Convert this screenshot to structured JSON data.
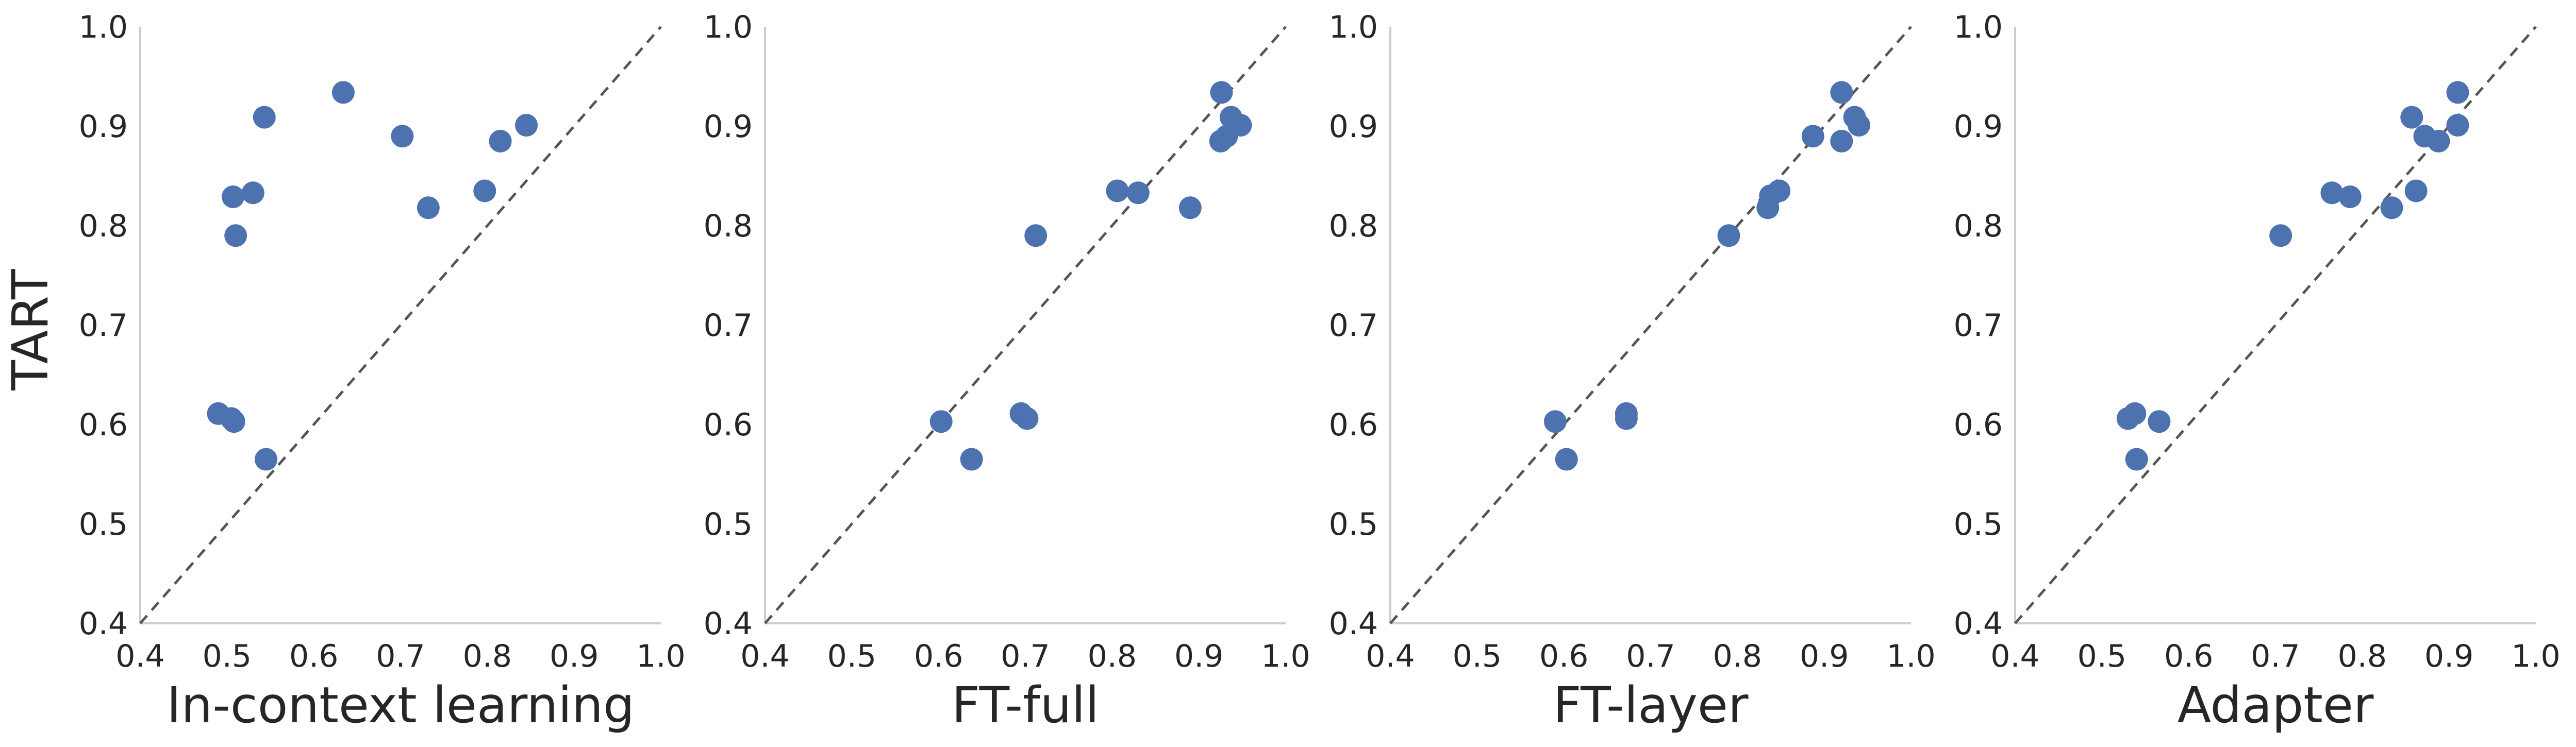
{
  "ylabel": "TART",
  "colors": {
    "points": "#4c72b0",
    "diagonal": "#555555",
    "axis": "#cccccc"
  },
  "chart_data": [
    {
      "type": "scatter",
      "xlabel": "In-context learning",
      "ylabel": "TART",
      "xlim": [
        0.4,
        1.0
      ],
      "ylim": [
        0.4,
        1.0
      ],
      "xticks": [
        "0.4",
        "0.5",
        "0.6",
        "0.7",
        "0.8",
        "0.9",
        "1.0"
      ],
      "yticks": [
        "0.4",
        "0.5",
        "0.6",
        "0.7",
        "0.8",
        "0.9",
        "1.0"
      ],
      "grid": false,
      "reference_line": "y = x (dashed)",
      "points": [
        {
          "x": 0.49,
          "y": 0.611
        },
        {
          "x": 0.505,
          "y": 0.606
        },
        {
          "x": 0.508,
          "y": 0.603
        },
        {
          "x": 0.545,
          "y": 0.565
        },
        {
          "x": 0.51,
          "y": 0.79
        },
        {
          "x": 0.507,
          "y": 0.829
        },
        {
          "x": 0.53,
          "y": 0.833
        },
        {
          "x": 0.543,
          "y": 0.909
        },
        {
          "x": 0.634,
          "y": 0.934
        },
        {
          "x": 0.702,
          "y": 0.89
        },
        {
          "x": 0.732,
          "y": 0.818
        },
        {
          "x": 0.797,
          "y": 0.835
        },
        {
          "x": 0.815,
          "y": 0.885
        },
        {
          "x": 0.845,
          "y": 0.901
        }
      ]
    },
    {
      "type": "scatter",
      "xlabel": "FT-full",
      "xlim": [
        0.4,
        1.0
      ],
      "ylim": [
        0.4,
        1.0
      ],
      "xticks": [
        "0.4",
        "0.5",
        "0.6",
        "0.7",
        "0.8",
        "0.9",
        "1.0"
      ],
      "yticks": [
        "0.4",
        "0.5",
        "0.6",
        "0.7",
        "0.8",
        "0.9",
        "1.0"
      ],
      "grid": false,
      "reference_line": "y = x (dashed)",
      "points": [
        {
          "x": 0.603,
          "y": 0.603
        },
        {
          "x": 0.638,
          "y": 0.565
        },
        {
          "x": 0.695,
          "y": 0.611
        },
        {
          "x": 0.702,
          "y": 0.606
        },
        {
          "x": 0.712,
          "y": 0.79
        },
        {
          "x": 0.806,
          "y": 0.835
        },
        {
          "x": 0.83,
          "y": 0.833
        },
        {
          "x": 0.89,
          "y": 0.818
        },
        {
          "x": 0.925,
          "y": 0.885
        },
        {
          "x": 0.932,
          "y": 0.89
        },
        {
          "x": 0.926,
          "y": 0.934
        },
        {
          "x": 0.937,
          "y": 0.909
        },
        {
          "x": 0.948,
          "y": 0.901
        }
      ]
    },
    {
      "type": "scatter",
      "xlabel": "FT-layer",
      "xlim": [
        0.4,
        1.0
      ],
      "ylim": [
        0.4,
        1.0
      ],
      "xticks": [
        "0.4",
        "0.5",
        "0.6",
        "0.7",
        "0.8",
        "0.9",
        "1.0"
      ],
      "yticks": [
        "0.4",
        "0.5",
        "0.6",
        "0.7",
        "0.8",
        "0.9",
        "1.0"
      ],
      "grid": false,
      "reference_line": "y = x (dashed)",
      "points": [
        {
          "x": 0.59,
          "y": 0.603
        },
        {
          "x": 0.603,
          "y": 0.565
        },
        {
          "x": 0.672,
          "y": 0.611
        },
        {
          "x": 0.672,
          "y": 0.606
        },
        {
          "x": 0.79,
          "y": 0.79
        },
        {
          "x": 0.835,
          "y": 0.818
        },
        {
          "x": 0.838,
          "y": 0.83
        },
        {
          "x": 0.848,
          "y": 0.835
        },
        {
          "x": 0.887,
          "y": 0.89
        },
        {
          "x": 0.92,
          "y": 0.934
        },
        {
          "x": 0.92,
          "y": 0.885
        },
        {
          "x": 0.935,
          "y": 0.909
        },
        {
          "x": 0.94,
          "y": 0.901
        }
      ]
    },
    {
      "type": "scatter",
      "xlabel": "Adapter",
      "xlim": [
        0.4,
        1.0
      ],
      "ylim": [
        0.4,
        1.0
      ],
      "xticks": [
        "0.4",
        "0.5",
        "0.6",
        "0.7",
        "0.8",
        "0.9",
        "1.0"
      ],
      "yticks": [
        "0.4",
        "0.5",
        "0.6",
        "0.7",
        "0.8",
        "0.9",
        "1.0"
      ],
      "grid": false,
      "reference_line": "y = x (dashed)",
      "points": [
        {
          "x": 0.53,
          "y": 0.606
        },
        {
          "x": 0.538,
          "y": 0.611
        },
        {
          "x": 0.54,
          "y": 0.565
        },
        {
          "x": 0.566,
          "y": 0.603
        },
        {
          "x": 0.706,
          "y": 0.79
        },
        {
          "x": 0.765,
          "y": 0.833
        },
        {
          "x": 0.786,
          "y": 0.829
        },
        {
          "x": 0.834,
          "y": 0.818
        },
        {
          "x": 0.857,
          "y": 0.909
        },
        {
          "x": 0.862,
          "y": 0.835
        },
        {
          "x": 0.872,
          "y": 0.89
        },
        {
          "x": 0.888,
          "y": 0.885
        },
        {
          "x": 0.91,
          "y": 0.934
        },
        {
          "x": 0.91,
          "y": 0.901
        }
      ]
    }
  ]
}
